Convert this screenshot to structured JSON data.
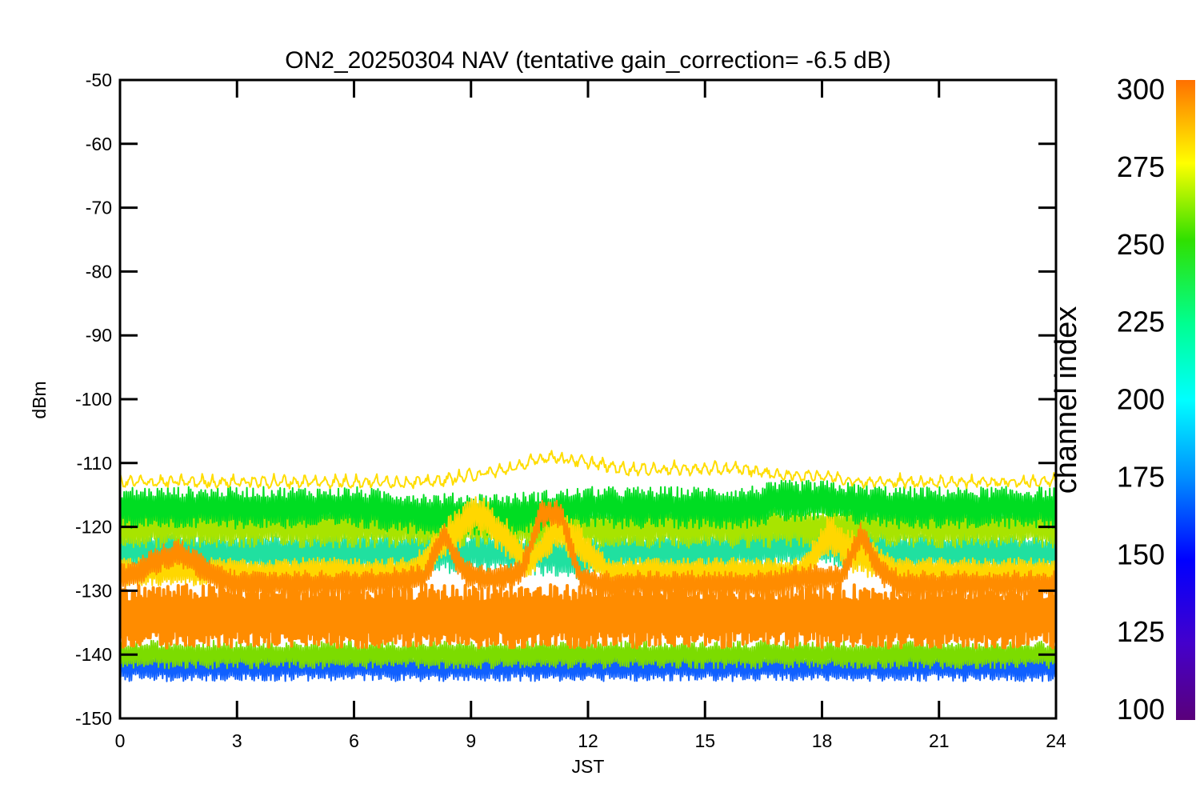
{
  "chart_data": {
    "type": "line",
    "title": "ON2_20250304 NAV (tentative gain_correction= -6.5 dB)",
    "xlabel": "JST",
    "ylabel": "dBm",
    "xlim": [
      0,
      24
    ],
    "ylim": [
      -150,
      -50
    ],
    "x_ticks": [
      "0",
      "3",
      "6",
      "9",
      "12",
      "15",
      "18",
      "21",
      "24"
    ],
    "y_ticks": [
      "-50",
      "-60",
      "-70",
      "-80",
      "-90",
      "-100",
      "-110",
      "-120",
      "-130",
      "-140",
      "-150"
    ],
    "grid": false,
    "colorbar": {
      "label": "channel index",
      "range": [
        100,
        300
      ],
      "ticks": [
        "100",
        "125",
        "150",
        "175",
        "200",
        "225",
        "250",
        "275",
        "300"
      ],
      "colormap": "rainbow"
    },
    "series": [
      {
        "color": "#ff8c00",
        "x": [
          0,
          1,
          2,
          3,
          4,
          5,
          6,
          7,
          8,
          9,
          10,
          11,
          12,
          13,
          14,
          15,
          16,
          17,
          18,
          19,
          20,
          21,
          22,
          23,
          24
        ],
        "y": [
          -134,
          -134,
          -134,
          -134,
          -134,
          -134,
          -134,
          -134,
          -134,
          -134,
          -134,
          -134,
          -134,
          -134,
          -134,
          -134,
          -134,
          -134,
          -134,
          -134,
          -134,
          -134,
          -134,
          -134,
          -134
        ],
        "band": [
          4.5,
          4.5,
          4.5,
          4.5,
          4.5,
          4.5,
          4.5,
          4.5,
          4.5,
          4.5,
          4.5,
          4.5,
          4.5,
          4.5,
          4.5,
          4.5,
          4.5,
          4.5,
          4.5,
          4.5,
          4.5,
          4.5,
          4.5,
          4.5,
          4.5
        ]
      },
      {
        "color": "#ff8c00",
        "x": [
          0,
          0.5,
          1,
          1.5,
          2,
          2.5,
          3,
          6,
          7.8,
          8.3,
          8.8,
          9.3,
          9.8,
          10.3,
          10.8,
          11.3,
          11.8,
          12.3,
          16.5,
          17.5,
          18.5,
          19,
          19.5,
          20,
          24
        ],
        "y": [
          -128,
          -127,
          -125,
          -124,
          -126,
          -128,
          -129,
          -129,
          -128,
          -121,
          -127,
          -128,
          -128,
          -127,
          -118,
          -118,
          -128,
          -129,
          -129,
          -128,
          -128,
          -121,
          -127,
          -129,
          -129
        ],
        "band": [
          2,
          2,
          2,
          2,
          2,
          2,
          2,
          2,
          2,
          2,
          2,
          2,
          2,
          2,
          2,
          2,
          2,
          2,
          2,
          2,
          2,
          2,
          2,
          2,
          2
        ]
      },
      {
        "color": "#ffd700",
        "x": [
          0,
          2,
          4,
          6,
          7.5,
          8.5,
          9.2,
          9.8,
          10.5,
          11.2,
          11.8,
          12.5,
          14,
          16,
          17.5,
          18.2,
          18.8,
          20,
          22,
          24
        ],
        "y": [
          -127,
          -127,
          -127,
          -127,
          -127,
          -121,
          -118,
          -121,
          -126,
          -120,
          -123,
          -127,
          -127,
          -127,
          -127,
          -121,
          -124,
          -127,
          -127,
          -127
        ],
        "band": [
          2,
          2,
          2,
          2,
          2,
          3,
          3,
          3,
          2,
          3,
          3,
          2,
          2,
          2,
          2,
          3,
          3,
          2,
          2,
          2
        ]
      },
      {
        "color": "#20e0a0",
        "x": [
          0,
          2,
          4,
          6,
          8,
          10,
          12,
          13,
          15,
          17,
          18,
          20,
          22,
          24
        ],
        "y": [
          -124,
          -124,
          -124,
          -124,
          -124,
          -124,
          -125,
          -124,
          -124,
          -123,
          -123,
          -124,
          -124,
          -124
        ],
        "band": [
          3,
          3,
          3,
          3,
          3,
          3,
          3,
          3,
          3,
          3,
          3,
          3,
          3,
          3
        ]
      },
      {
        "color": "#00dd22",
        "x": [
          0,
          2,
          4,
          6,
          8,
          10,
          12,
          14,
          16,
          17,
          18,
          20,
          22,
          24
        ],
        "y": [
          -117,
          -117,
          -117,
          -117,
          -118,
          -118,
          -117,
          -117,
          -117,
          -116,
          -116,
          -117,
          -117,
          -117
        ],
        "band": [
          3,
          3,
          3,
          3,
          3,
          3,
          3,
          3,
          3,
          3,
          3,
          3,
          3,
          3
        ]
      },
      {
        "color": "#a8e400",
        "x": [
          0,
          2,
          4,
          6,
          8,
          10,
          12,
          14,
          16,
          18,
          20,
          22,
          24
        ],
        "y": [
          -120,
          -120,
          -120,
          -120,
          -120,
          -120,
          -120,
          -120,
          -120,
          -120,
          -120,
          -120,
          -120
        ],
        "band": [
          3,
          3,
          3,
          3,
          3,
          3,
          3,
          3,
          3,
          3,
          3,
          3,
          3
        ]
      },
      {
        "color": "#ffdd00",
        "x": [
          0,
          2,
          4,
          6,
          8,
          9,
          10,
          11,
          12,
          13,
          14,
          15,
          16,
          17,
          18,
          19,
          20,
          21,
          22,
          23,
          24
        ],
        "y": [
          -112,
          -112,
          -112,
          -112,
          -112,
          -111,
          -110,
          -108,
          -109,
          -110,
          -110,
          -110,
          -110,
          -111,
          -111,
          -112,
          -112,
          -112,
          -112,
          -112,
          -112
        ],
        "band": [
          1.5,
          1.5,
          1.5,
          1.5,
          1.5,
          1.5,
          1.5,
          1.5,
          1.5,
          1.5,
          1.5,
          1.5,
          1.5,
          1.5,
          1.5,
          1.5,
          1.5,
          1.5,
          1.5,
          1.5,
          1.5
        ]
      },
      {
        "color": "#1060ff",
        "x": [
          0,
          2,
          4,
          6,
          8,
          10,
          12,
          14,
          16,
          18,
          20,
          22,
          24
        ],
        "y": [
          -142,
          -142,
          -142,
          -142,
          -142,
          -142,
          -142,
          -142,
          -142,
          -142,
          -142,
          -142,
          -142
        ],
        "band": [
          2,
          2,
          2,
          2,
          2,
          2,
          2,
          2,
          2,
          2,
          2,
          2,
          2
        ]
      },
      {
        "color": "#7cdc00",
        "x": [
          0,
          2,
          4,
          6,
          8,
          10,
          12,
          14,
          16,
          18,
          20,
          22,
          24
        ],
        "y": [
          -140,
          -140,
          -140,
          -140,
          -140,
          -140,
          -140,
          -140,
          -140,
          -140,
          -140,
          -140,
          -140
        ],
        "band": [
          2,
          2,
          2,
          2,
          2,
          2,
          2,
          2,
          2,
          2,
          2,
          2,
          2
        ]
      }
    ]
  }
}
